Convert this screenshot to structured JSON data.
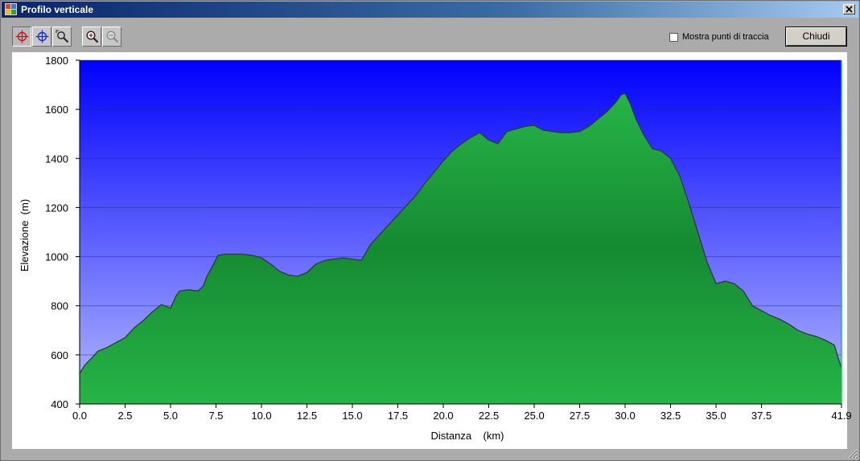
{
  "window": {
    "title": "Profilo verticale"
  },
  "toolbar": {
    "tools": [
      {
        "name": "crosshair-red-tool",
        "icon": "crosshair-red-icon",
        "pressed": true
      },
      {
        "name": "crosshair-blue-tool",
        "icon": "crosshair-blue-icon",
        "pressed": false
      },
      {
        "name": "zoom-select-tool",
        "icon": "zoom-rect-icon",
        "pressed": false
      },
      {
        "name": "zoom-in-tool",
        "icon": "zoom-in-icon",
        "pressed": false
      },
      {
        "name": "zoom-out-tool",
        "icon": "zoom-out-icon",
        "pressed": false,
        "disabled": true
      }
    ],
    "show_track_points_label": "Mostra punti di traccia",
    "show_track_points_checked": false,
    "close_label": "Chiudi"
  },
  "colors": {
    "sky_top": "#0000ff",
    "sky_bottom": "#b4baff",
    "terrain_light": "#26b447",
    "terrain_dark": "#158a32",
    "terrain_outline": "#2f3a33"
  },
  "chart_data": {
    "type": "area",
    "xlabel": "Distanza    (km)",
    "ylabel": "Elevazione  (m)",
    "xlim": [
      0,
      41.9
    ],
    "ylim": [
      400,
      1800
    ],
    "grid": true,
    "x_ticks": [
      0,
      2.5,
      5.0,
      7.5,
      10.0,
      12.5,
      15.0,
      17.5,
      20.0,
      22.5,
      25.0,
      27.5,
      30.0,
      32.5,
      35.0,
      37.5,
      41.9
    ],
    "x_tick_labels": [
      "0.0",
      "2.5",
      "5.0",
      "7.5",
      "10.0",
      "12.5",
      "15.0",
      "17.5",
      "20.0",
      "22.5",
      "25.0",
      "27.5",
      "30.0",
      "32.5",
      "35.0",
      "37.5",
      "41.9"
    ],
    "y_ticks": [
      400,
      600,
      800,
      1000,
      1200,
      1400,
      1600,
      1800
    ],
    "y_tick_labels": [
      "400",
      "600",
      "800",
      "1000",
      "1200",
      "1400",
      "1600",
      "1800"
    ],
    "series": [
      {
        "x": [
          0,
          0.3,
          0.7,
          1.0,
          1.5,
          2.0,
          2.5,
          3.0,
          3.5,
          4.0,
          4.5,
          5.0,
          5.3,
          5.5,
          6.0,
          6.5,
          6.8,
          7.0,
          7.3,
          7.6,
          8.0,
          8.5,
          9.0,
          9.5,
          10.0,
          10.5,
          11.0,
          11.5,
          12.0,
          12.5,
          13.0,
          13.5,
          14.0,
          14.5,
          15.0,
          15.5,
          16.0,
          16.5,
          17.0,
          17.5,
          18.0,
          18.5,
          19.0,
          19.5,
          20.0,
          20.5,
          21.0,
          21.5,
          22.0,
          22.5,
          23.0,
          23.5,
          24.0,
          24.5,
          25.0,
          25.5,
          26.0,
          26.5,
          27.0,
          27.5,
          28.0,
          28.5,
          29.0,
          29.5,
          29.8,
          30.0,
          30.3,
          30.6,
          31.0,
          31.5,
          32.0,
          32.5,
          33.0,
          33.5,
          34.0,
          34.5,
          35.0,
          35.5,
          36.0,
          36.5,
          37.0,
          37.5,
          38.0,
          38.5,
          39.0,
          39.5,
          40.0,
          40.5,
          41.0,
          41.5,
          41.9
        ],
        "y": [
          525,
          560,
          590,
          615,
          630,
          650,
          670,
          710,
          740,
          775,
          805,
          790,
          840,
          860,
          865,
          860,
          880,
          920,
          960,
          1005,
          1010,
          1010,
          1010,
          1005,
          995,
          970,
          940,
          925,
          920,
          935,
          970,
          985,
          990,
          995,
          990,
          985,
          1050,
          1090,
          1130,
          1170,
          1210,
          1250,
          1300,
          1345,
          1390,
          1430,
          1460,
          1485,
          1505,
          1475,
          1460,
          1510,
          1520,
          1530,
          1535,
          1515,
          1510,
          1505,
          1505,
          1510,
          1530,
          1560,
          1590,
          1630,
          1660,
          1665,
          1620,
          1560,
          1500,
          1440,
          1430,
          1400,
          1330,
          1220,
          1100,
          980,
          890,
          900,
          890,
          860,
          800,
          780,
          760,
          745,
          725,
          700,
          685,
          675,
          660,
          640,
          545
        ]
      }
    ]
  }
}
